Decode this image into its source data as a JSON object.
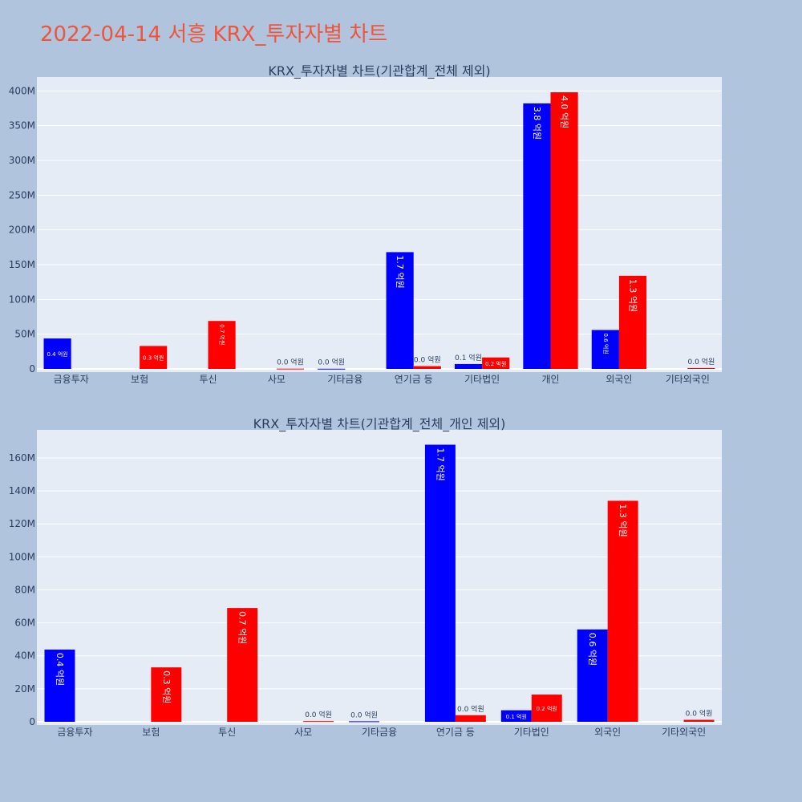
{
  "page_title": "2022-04-14 서흥 KRX_투자자별 차트",
  "colors": {
    "buy": "#0000ff",
    "sell": "#ff0000",
    "plot_bg": "#e5ecf6",
    "paper_bg": "#b0c4de",
    "title": "#ef553b"
  },
  "chart_data": [
    {
      "type": "bar",
      "title": "KRX_투자자별 차트(기관합계_전체 제외)",
      "categories": [
        "금융투자",
        "보험",
        "투신",
        "사모",
        "기타금융",
        "연기금 등",
        "기타법인",
        "개인",
        "외국인",
        "기타외국인"
      ],
      "series": [
        {
          "values": [
            43800000,
            0,
            0,
            0,
            300000,
            168000000,
            7000000,
            382000000,
            56000000,
            0
          ],
          "labels": [
            "0.4 억원",
            "",
            "",
            "",
            "0.0 억원",
            "1.7 억원",
            "0.1 억원",
            "3.8 억원",
            "0.6 억원",
            ""
          ]
        },
        {
          "values": [
            0,
            33000000,
            69000000,
            400000,
            0,
            4000000,
            16500000,
            398000000,
            134000000,
            1200000
          ],
          "labels": [
            "",
            "0.3 억원",
            "0.7 억원",
            "0.0 억원",
            "",
            "0.0 억원",
            "0.2 억원",
            "4.0 억원",
            "1.3 억원",
            "0.0 억원"
          ]
        }
      ],
      "yticks": [
        0,
        50000000,
        100000000,
        150000000,
        200000000,
        250000000,
        300000000,
        350000000,
        400000000
      ],
      "yticklabels": [
        "0",
        "50M",
        "100M",
        "150M",
        "200M",
        "250M",
        "300M",
        "350M",
        "400M"
      ],
      "ylim": [
        0,
        420000000
      ],
      "grid": true
    },
    {
      "type": "bar",
      "title": "KRX_투자자별 차트(기관합계_전체_개인 제외)",
      "categories": [
        "금융투자",
        "보험",
        "투신",
        "사모",
        "기타금융",
        "연기금 등",
        "기타법인",
        "외국인",
        "기타외국인"
      ],
      "series": [
        {
          "values": [
            43800000,
            0,
            0,
            0,
            300000,
            168000000,
            7000000,
            56000000,
            0
          ],
          "labels": [
            "0.4 억원",
            "",
            "",
            "",
            "0.0 억원",
            "1.7 억원",
            "0.1 억원",
            "0.6 억원",
            ""
          ]
        },
        {
          "values": [
            0,
            33000000,
            69000000,
            400000,
            0,
            4000000,
            16500000,
            134000000,
            1200000
          ],
          "labels": [
            "",
            "0.3 억원",
            "0.7 억원",
            "0.0 억원",
            "",
            "0.0 억원",
            "0.2 억원",
            "1.3 억원",
            "0.0 억원"
          ]
        }
      ],
      "yticks": [
        0,
        20000000,
        40000000,
        60000000,
        80000000,
        100000000,
        120000000,
        140000000,
        160000000
      ],
      "yticklabels": [
        "0",
        "20M",
        "40M",
        "60M",
        "80M",
        "100M",
        "120M",
        "140M",
        "160M"
      ],
      "ylim": [
        0,
        177000000
      ],
      "grid": true
    }
  ]
}
